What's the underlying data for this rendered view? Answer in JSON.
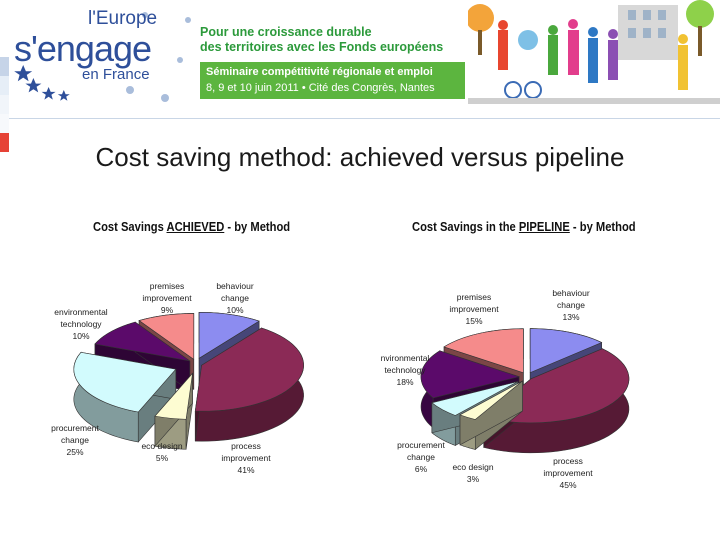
{
  "banner": {
    "logo": {
      "line1": "l'Europe",
      "line2": "s'engage",
      "line3": "en France"
    },
    "headline_line1": "Pour une croissance durable",
    "headline_line2": "des territoires avec les Fonds européens",
    "seminar_line1": "Séminaire compétitivité régionale et emploi",
    "seminar_line2": "8, 9 et 10 juin 2011 • Cité des Congrès, Nantes"
  },
  "slide_title": "Cost saving method: achieved versus pipeline",
  "colors": {
    "behaviour": "#8c8cf0",
    "process": "#8b2a56",
    "ecodesign": "#fdfcd2",
    "procurement": "#d2fbfd",
    "environmental": "#5b0a6a",
    "premises": "#f58b8b"
  },
  "chart_data": [
    {
      "type": "pie",
      "title_parts": [
        "Cost Savings ",
        "ACHIEVED",
        " - by Method"
      ],
      "slices": [
        {
          "key": "behaviour",
          "label": "behaviour\nchange",
          "pct": "10%",
          "value": 10
        },
        {
          "key": "process",
          "label": "process\nimprovement",
          "pct": "41%",
          "value": 41
        },
        {
          "key": "ecodesign",
          "label": "eco design",
          "pct": "5%",
          "value": 5
        },
        {
          "key": "procurement",
          "label": "procurement\nchange",
          "pct": "25%",
          "value": 25
        },
        {
          "key": "environmental",
          "label": "environmental\ntechnology",
          "pct": "10%",
          "value": 10
        },
        {
          "key": "premises",
          "label": "premises\nimprovement",
          "pct": "9%",
          "value": 9
        }
      ]
    },
    {
      "type": "pie",
      "title_parts": [
        "Cost Savings in the ",
        "PIPELINE",
        " - by Method"
      ],
      "slices": [
        {
          "key": "behaviour",
          "label": "behaviour\nchange",
          "pct": "13%",
          "value": 13
        },
        {
          "key": "process",
          "label": "process\nimprovement",
          "pct": "45%",
          "value": 45
        },
        {
          "key": "ecodesign",
          "label": "eco design",
          "pct": "3%",
          "value": 3
        },
        {
          "key": "procurement",
          "label": "procurement\nchange",
          "pct": "6%",
          "value": 6
        },
        {
          "key": "environmental",
          "label": "nvironmental\ntechnology",
          "pct": "18%",
          "value": 18
        },
        {
          "key": "premises",
          "label": "premises\nimprovement",
          "pct": "15%",
          "value": 15
        }
      ]
    }
  ]
}
